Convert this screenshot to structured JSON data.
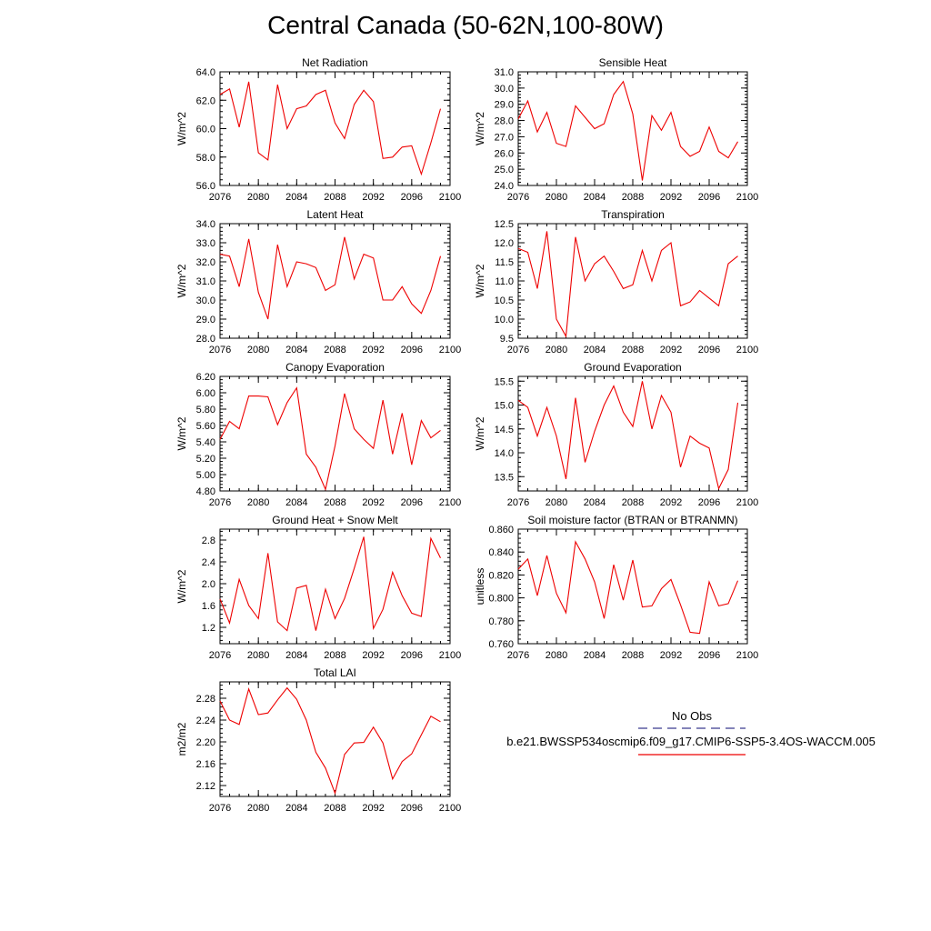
{
  "title": "Central Canada (50-62N,100-80W)",
  "colors": {
    "model_line": "#ee0000",
    "obs_line": "#3b3b8f",
    "axis": "#000000"
  },
  "legend": {
    "obs_label": "No Obs",
    "model_label": "b.e21.BWSSP534oscmip6.f09_g17.CMIP6-SSP5-3.4OS-WACCM.005"
  },
  "chart_data": [
    {
      "type": "line",
      "title": "Net Radiation",
      "ylabel": "W/m^2",
      "xlim": [
        2076,
        2100
      ],
      "ylim": [
        56,
        64
      ],
      "xticks": [
        2076,
        2080,
        2084,
        2088,
        2092,
        2096,
        2100
      ],
      "yticks": [
        "56.0",
        "58.0",
        "60.0",
        "62.0",
        "64.0"
      ],
      "x": [
        2076,
        2077,
        2078,
        2079,
        2080,
        2081,
        2082,
        2083,
        2084,
        2085,
        2086,
        2087,
        2088,
        2089,
        2090,
        2091,
        2092,
        2093,
        2094,
        2095,
        2096,
        2097,
        2098,
        2099
      ],
      "values": [
        62.4,
        62.8,
        60.1,
        63.3,
        58.3,
        57.8,
        63.1,
        60.0,
        61.4,
        61.6,
        62.4,
        62.7,
        60.4,
        59.3,
        61.7,
        62.7,
        61.9,
        57.9,
        58.0,
        58.7,
        58.8,
        56.8,
        59.0,
        61.4
      ]
    },
    {
      "type": "line",
      "title": "Sensible Heat",
      "ylabel": "W/m^2",
      "xlim": [
        2076,
        2100
      ],
      "ylim": [
        24,
        31
      ],
      "xticks": [
        2076,
        2080,
        2084,
        2088,
        2092,
        2096,
        2100
      ],
      "yticks": [
        "24.0",
        "25.0",
        "26.0",
        "27.0",
        "28.0",
        "29.0",
        "30.0",
        "31.0"
      ],
      "x": [
        2076,
        2077,
        2078,
        2079,
        2080,
        2081,
        2082,
        2083,
        2084,
        2085,
        2086,
        2087,
        2088,
        2089,
        2090,
        2091,
        2092,
        2093,
        2094,
        2095,
        2096,
        2097,
        2098,
        2099
      ],
      "values": [
        28.1,
        29.2,
        27.3,
        28.5,
        26.6,
        26.4,
        28.9,
        28.2,
        27.5,
        27.8,
        29.6,
        30.4,
        28.4,
        24.3,
        28.3,
        27.4,
        28.5,
        26.4,
        25.8,
        26.1,
        27.6,
        26.1,
        25.7,
        26.7
      ]
    },
    {
      "type": "line",
      "title": "Latent Heat",
      "ylabel": "W/m^2",
      "xlim": [
        2076,
        2100
      ],
      "ylim": [
        28,
        34
      ],
      "xticks": [
        2076,
        2080,
        2084,
        2088,
        2092,
        2096,
        2100
      ],
      "yticks": [
        "28.0",
        "29.0",
        "30.0",
        "31.0",
        "32.0",
        "33.0",
        "34.0"
      ],
      "x": [
        2076,
        2077,
        2078,
        2079,
        2080,
        2081,
        2082,
        2083,
        2084,
        2085,
        2086,
        2087,
        2088,
        2089,
        2090,
        2091,
        2092,
        2093,
        2094,
        2095,
        2096,
        2097,
        2098,
        2099
      ],
      "values": [
        32.4,
        32.3,
        30.7,
        33.2,
        30.4,
        29.0,
        32.9,
        30.7,
        32.0,
        31.9,
        31.7,
        30.5,
        30.8,
        33.3,
        31.1,
        32.4,
        32.2,
        30.0,
        30.0,
        30.7,
        29.8,
        29.3,
        30.5,
        32.3
      ]
    },
    {
      "type": "line",
      "title": "Transpiration",
      "ylabel": "W/m^2",
      "xlim": [
        2076,
        2100
      ],
      "ylim": [
        9.5,
        12.5
      ],
      "xticks": [
        2076,
        2080,
        2084,
        2088,
        2092,
        2096,
        2100
      ],
      "yticks": [
        "9.5",
        "10.0",
        "10.5",
        "11.0",
        "11.5",
        "12.0",
        "12.5"
      ],
      "x": [
        2076,
        2077,
        2078,
        2079,
        2080,
        2081,
        2082,
        2083,
        2084,
        2085,
        2086,
        2087,
        2088,
        2089,
        2090,
        2091,
        2092,
        2093,
        2094,
        2095,
        2096,
        2097,
        2098,
        2099
      ],
      "values": [
        11.85,
        11.75,
        10.8,
        12.3,
        10.0,
        9.55,
        12.15,
        11.0,
        11.45,
        11.65,
        11.25,
        10.8,
        10.9,
        11.8,
        11.0,
        11.8,
        12.0,
        10.35,
        10.45,
        10.75,
        10.55,
        10.35,
        11.45,
        11.65
      ]
    },
    {
      "type": "line",
      "title": "Canopy Evaporation",
      "ylabel": "W/m^2",
      "xlim": [
        2076,
        2100
      ],
      "ylim": [
        4.8,
        6.2
      ],
      "xticks": [
        2076,
        2080,
        2084,
        2088,
        2092,
        2096,
        2100
      ],
      "yticks": [
        "4.80",
        "5.00",
        "5.20",
        "5.40",
        "5.60",
        "5.80",
        "6.00",
        "6.20"
      ],
      "x": [
        2076,
        2077,
        2078,
        2079,
        2080,
        2081,
        2082,
        2083,
        2084,
        2085,
        2086,
        2087,
        2088,
        2089,
        2090,
        2091,
        2092,
        2093,
        2094,
        2095,
        2096,
        2097,
        2098,
        2099
      ],
      "values": [
        5.43,
        5.65,
        5.56,
        5.96,
        5.96,
        5.95,
        5.61,
        5.88,
        6.06,
        5.25,
        5.09,
        4.82,
        5.35,
        5.99,
        5.56,
        5.43,
        5.32,
        5.91,
        5.25,
        5.75,
        5.12,
        5.66,
        5.45,
        5.54
      ]
    },
    {
      "type": "line",
      "title": "Ground Evaporation",
      "ylabel": "W/m^2",
      "xlim": [
        2076,
        2100
      ],
      "ylim": [
        13.2,
        15.6
      ],
      "xticks": [
        2076,
        2080,
        2084,
        2088,
        2092,
        2096,
        2100
      ],
      "yticks": [
        "13.5",
        "14.0",
        "14.5",
        "15.0",
        "15.5"
      ],
      "x": [
        2076,
        2077,
        2078,
        2079,
        2080,
        2081,
        2082,
        2083,
        2084,
        2085,
        2086,
        2087,
        2088,
        2089,
        2090,
        2091,
        2092,
        2093,
        2094,
        2095,
        2096,
        2097,
        2098,
        2099
      ],
      "values": [
        15.1,
        14.95,
        14.35,
        14.95,
        14.35,
        13.45,
        15.15,
        13.8,
        14.45,
        15.0,
        15.4,
        14.85,
        14.55,
        15.5,
        14.5,
        15.2,
        14.85,
        13.7,
        14.35,
        14.2,
        14.1,
        13.25,
        13.65,
        15.05
      ]
    },
    {
      "type": "line",
      "title": "Ground Heat + Snow Melt",
      "ylabel": "W/m^2",
      "xlim": [
        2076,
        2100
      ],
      "ylim": [
        0.9,
        3.0
      ],
      "xticks": [
        2076,
        2080,
        2084,
        2088,
        2092,
        2096,
        2100
      ],
      "yticks": [
        "1.2",
        "1.6",
        "2.0",
        "2.4",
        "2.8"
      ],
      "x": [
        2076,
        2077,
        2078,
        2079,
        2080,
        2081,
        2082,
        2083,
        2084,
        2085,
        2086,
        2087,
        2088,
        2089,
        2090,
        2091,
        2092,
        2093,
        2094,
        2095,
        2096,
        2097,
        2098,
        2099
      ],
      "values": [
        1.72,
        1.28,
        2.08,
        1.6,
        1.36,
        2.56,
        1.3,
        1.14,
        1.92,
        1.97,
        1.14,
        1.9,
        1.36,
        1.73,
        2.28,
        2.86,
        1.18,
        1.53,
        2.21,
        1.78,
        1.46,
        1.4,
        2.83,
        2.47
      ]
    },
    {
      "type": "line",
      "title": "Soil moisture factor (BTRAN or BTRANMN)",
      "ylabel": "unitless",
      "xlim": [
        2076,
        2100
      ],
      "ylim": [
        0.76,
        0.86
      ],
      "xticks": [
        2076,
        2080,
        2084,
        2088,
        2092,
        2096,
        2100
      ],
      "yticks": [
        "0.760",
        "0.780",
        "0.800",
        "0.820",
        "0.840",
        "0.860"
      ],
      "x": [
        2076,
        2077,
        2078,
        2079,
        2080,
        2081,
        2082,
        2083,
        2084,
        2085,
        2086,
        2087,
        2088,
        2089,
        2090,
        2091,
        2092,
        2093,
        2094,
        2095,
        2096,
        2097,
        2098,
        2099
      ],
      "values": [
        0.825,
        0.834,
        0.802,
        0.837,
        0.804,
        0.787,
        0.849,
        0.834,
        0.814,
        0.782,
        0.829,
        0.798,
        0.833,
        0.792,
        0.793,
        0.808,
        0.816,
        0.794,
        0.77,
        0.769,
        0.814,
        0.793,
        0.795,
        0.815
      ]
    },
    {
      "type": "line",
      "title": "Total LAI",
      "ylabel": "m2/m2",
      "xlim": [
        2076,
        2100
      ],
      "ylim": [
        2.1,
        2.31
      ],
      "xticks": [
        2076,
        2080,
        2084,
        2088,
        2092,
        2096,
        2100
      ],
      "yticks": [
        "2.12",
        "2.16",
        "2.20",
        "2.24",
        "2.28"
      ],
      "x": [
        2076,
        2077,
        2078,
        2079,
        2080,
        2081,
        2082,
        2083,
        2084,
        2085,
        2086,
        2087,
        2088,
        2089,
        2090,
        2091,
        2092,
        2093,
        2094,
        2095,
        2096,
        2097,
        2098,
        2099
      ],
      "values": [
        2.275,
        2.24,
        2.232,
        2.297,
        2.25,
        2.253,
        2.277,
        2.299,
        2.278,
        2.24,
        2.181,
        2.152,
        2.106,
        2.177,
        2.198,
        2.199,
        2.227,
        2.198,
        2.132,
        2.164,
        2.178,
        2.213,
        2.247,
        2.237
      ]
    }
  ]
}
